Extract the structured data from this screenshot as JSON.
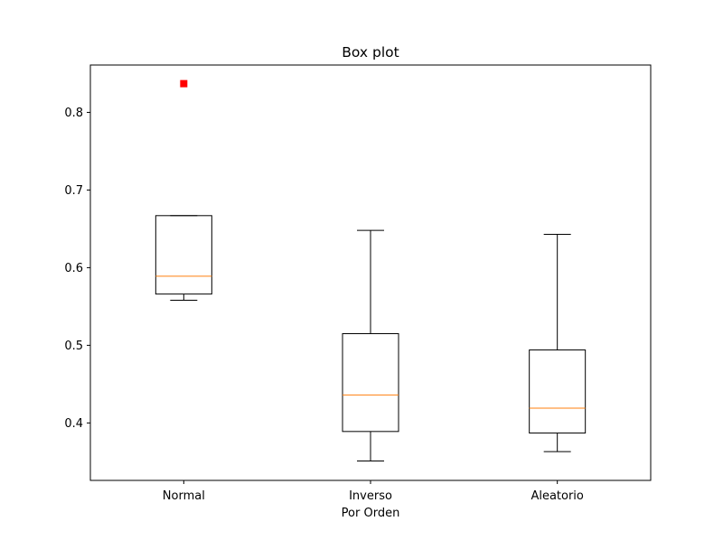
{
  "chart_data": {
    "type": "box",
    "title": "Box plot",
    "xlabel": "Por Orden",
    "ylabel": "",
    "ylim": [
      0.326,
      0.861
    ],
    "yticks": [
      {
        "value": 0.4,
        "label": "0.4"
      },
      {
        "value": 0.5,
        "label": "0.5"
      },
      {
        "value": 0.6,
        "label": "0.6"
      },
      {
        "value": 0.7,
        "label": "0.7"
      },
      {
        "value": 0.8,
        "label": "0.8"
      }
    ],
    "categories": [
      "Normal",
      "Inverso",
      "Aleatorio"
    ],
    "boxes": [
      {
        "name": "Normal",
        "whisker_low": 0.558,
        "q1": 0.566,
        "median": 0.589,
        "q3": 0.667,
        "whisker_high": 0.667,
        "outliers": [
          0.837
        ]
      },
      {
        "name": "Inverso",
        "whisker_low": 0.351,
        "q1": 0.389,
        "median": 0.436,
        "q3": 0.515,
        "whisker_high": 0.648,
        "outliers": []
      },
      {
        "name": "Aleatorio",
        "whisker_low": 0.363,
        "q1": 0.387,
        "median": 0.419,
        "q3": 0.494,
        "whisker_high": 0.643,
        "outliers": []
      }
    ],
    "grid": false,
    "colors": {
      "box": "#000000",
      "median": "#ff7f0e",
      "outlier": "#ff0000"
    }
  }
}
